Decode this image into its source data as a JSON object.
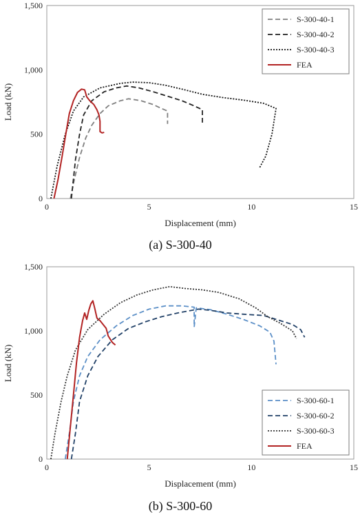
{
  "chart_data": [
    {
      "type": "line",
      "caption": "(a) S-300-40",
      "xlabel": "Displacement (mm)",
      "ylabel": "Load (kN)",
      "xlim": [
        0,
        15
      ],
      "ylim": [
        0,
        1500
      ],
      "xticks": [
        "0",
        "5",
        "10",
        "15"
      ],
      "yticks": [
        "0",
        "500",
        "1,000",
        "1,500"
      ],
      "grid": false,
      "legend_position": "top-right",
      "series": [
        {
          "name": "S-300-40-1",
          "style": "dashed",
          "color": "#7f7f7f",
          "points": [
            [
              1.15,
              0
            ],
            [
              1.35,
              150
            ],
            [
              1.6,
              320
            ],
            [
              1.9,
              470
            ],
            [
              2.2,
              570
            ],
            [
              2.6,
              660
            ],
            [
              3.0,
              720
            ],
            [
              3.6,
              760
            ],
            [
              4.0,
              775
            ],
            [
              4.6,
              760
            ],
            [
              5.2,
              730
            ],
            [
              5.6,
              700
            ],
            [
              5.9,
              680
            ],
            [
              5.9,
              580
            ]
          ]
        },
        {
          "name": "S-300-40-2",
          "style": "dashed",
          "color": "#222222",
          "points": [
            [
              1.2,
              0
            ],
            [
              1.4,
              300
            ],
            [
              1.6,
              500
            ],
            [
              1.8,
              650
            ],
            [
              2.2,
              760
            ],
            [
              2.8,
              830
            ],
            [
              3.4,
              860
            ],
            [
              3.9,
              875
            ],
            [
              4.5,
              860
            ],
            [
              5.2,
              830
            ],
            [
              5.8,
              800
            ],
            [
              6.6,
              760
            ],
            [
              7.2,
              720
            ],
            [
              7.6,
              690
            ],
            [
              7.6,
              590
            ]
          ]
        },
        {
          "name": "S-300-40-3",
          "style": "dotted",
          "color": "#111111",
          "points": [
            [
              0.2,
              0
            ],
            [
              0.5,
              250
            ],
            [
              0.9,
              500
            ],
            [
              1.3,
              680
            ],
            [
              1.8,
              790
            ],
            [
              2.6,
              860
            ],
            [
              3.6,
              895
            ],
            [
              4.2,
              905
            ],
            [
              5.0,
              900
            ],
            [
              5.8,
              880
            ],
            [
              6.6,
              850
            ],
            [
              7.6,
              810
            ],
            [
              8.6,
              785
            ],
            [
              9.6,
              765
            ],
            [
              10.6,
              740
            ],
            [
              11.2,
              700
            ],
            [
              11.0,
              500
            ],
            [
              10.7,
              330
            ],
            [
              10.4,
              240
            ]
          ]
        },
        {
          "name": "FEA",
          "style": "solid",
          "color": "#b22222",
          "points": [
            [
              0.35,
              0
            ],
            [
              0.55,
              150
            ],
            [
              0.75,
              330
            ],
            [
              0.95,
              520
            ],
            [
              1.1,
              660
            ],
            [
              1.3,
              760
            ],
            [
              1.5,
              825
            ],
            [
              1.7,
              850
            ],
            [
              1.85,
              845
            ],
            [
              1.95,
              790
            ],
            [
              2.1,
              760
            ],
            [
              2.3,
              730
            ],
            [
              2.45,
              690
            ],
            [
              2.55,
              650
            ],
            [
              2.6,
              600
            ],
            [
              2.6,
              520
            ],
            [
              2.7,
              510
            ],
            [
              2.8,
              515
            ]
          ]
        }
      ]
    },
    {
      "type": "line",
      "caption": "(b) S-300-60",
      "xlabel": "Displacement (mm)",
      "ylabel": "Load (kN)",
      "xlim": [
        0,
        15
      ],
      "ylim": [
        0,
        1500
      ],
      "xticks": [
        "0",
        "5",
        "10",
        "15"
      ],
      "yticks": [
        "0",
        "500",
        "1,000",
        "1,500"
      ],
      "grid": false,
      "legend_position": "bottom-right",
      "series": [
        {
          "name": "S-300-60-1",
          "style": "dashed",
          "color": "#5b8fc7",
          "points": [
            [
              0.9,
              0
            ],
            [
              1.1,
              200
            ],
            [
              1.3,
              450
            ],
            [
              1.6,
              650
            ],
            [
              2.0,
              800
            ],
            [
              2.6,
              930
            ],
            [
              3.4,
              1040
            ],
            [
              4.2,
              1120
            ],
            [
              5.0,
              1170
            ],
            [
              5.8,
              1195
            ],
            [
              6.6,
              1195
            ],
            [
              7.2,
              1185
            ],
            [
              7.2,
              1030
            ],
            [
              7.3,
              1180
            ],
            [
              8.0,
              1165
            ],
            [
              8.8,
              1130
            ],
            [
              9.6,
              1090
            ],
            [
              10.4,
              1040
            ],
            [
              10.9,
              990
            ],
            [
              11.1,
              920
            ],
            [
              11.2,
              740
            ]
          ]
        },
        {
          "name": "S-300-60-2",
          "style": "dashed",
          "color": "#1f3f66",
          "points": [
            [
              1.2,
              0
            ],
            [
              1.4,
              200
            ],
            [
              1.6,
              450
            ],
            [
              2.0,
              650
            ],
            [
              2.5,
              800
            ],
            [
              3.2,
              930
            ],
            [
              4.0,
              1020
            ],
            [
              4.8,
              1070
            ],
            [
              5.6,
              1110
            ],
            [
              6.4,
              1140
            ],
            [
              7.4,
              1170
            ],
            [
              8.0,
              1160
            ],
            [
              8.8,
              1140
            ],
            [
              9.6,
              1130
            ],
            [
              10.6,
              1120
            ],
            [
              11.4,
              1080
            ],
            [
              12.0,
              1050
            ],
            [
              12.4,
              1010
            ],
            [
              12.6,
              950
            ]
          ]
        },
        {
          "name": "S-300-60-3",
          "style": "dotted",
          "color": "#333333",
          "points": [
            [
              0.2,
              0
            ],
            [
              0.4,
              200
            ],
            [
              0.7,
              450
            ],
            [
              1.0,
              650
            ],
            [
              1.4,
              850
            ],
            [
              2.0,
              1010
            ],
            [
              2.8,
              1130
            ],
            [
              3.6,
              1220
            ],
            [
              4.4,
              1280
            ],
            [
              5.2,
              1320
            ],
            [
              6.0,
              1345
            ],
            [
              6.8,
              1330
            ],
            [
              7.6,
              1320
            ],
            [
              8.4,
              1300
            ],
            [
              9.4,
              1250
            ],
            [
              10.2,
              1180
            ],
            [
              10.8,
              1110
            ],
            [
              11.4,
              1060
            ],
            [
              12.0,
              1000
            ],
            [
              12.2,
              940
            ]
          ]
        },
        {
          "name": "FEA",
          "style": "solid",
          "color": "#b22222",
          "points": [
            [
              1.0,
              0
            ],
            [
              1.15,
              250
            ],
            [
              1.3,
              500
            ],
            [
              1.45,
              750
            ],
            [
              1.6,
              950
            ],
            [
              1.75,
              1080
            ],
            [
              1.85,
              1140
            ],
            [
              1.95,
              1090
            ],
            [
              2.05,
              1160
            ],
            [
              2.15,
              1210
            ],
            [
              2.25,
              1235
            ],
            [
              2.35,
              1170
            ],
            [
              2.45,
              1100
            ],
            [
              2.6,
              1080
            ],
            [
              2.75,
              1050
            ],
            [
              2.9,
              1020
            ],
            [
              3.0,
              960
            ],
            [
              3.2,
              910
            ],
            [
              3.35,
              890
            ]
          ]
        }
      ]
    }
  ]
}
